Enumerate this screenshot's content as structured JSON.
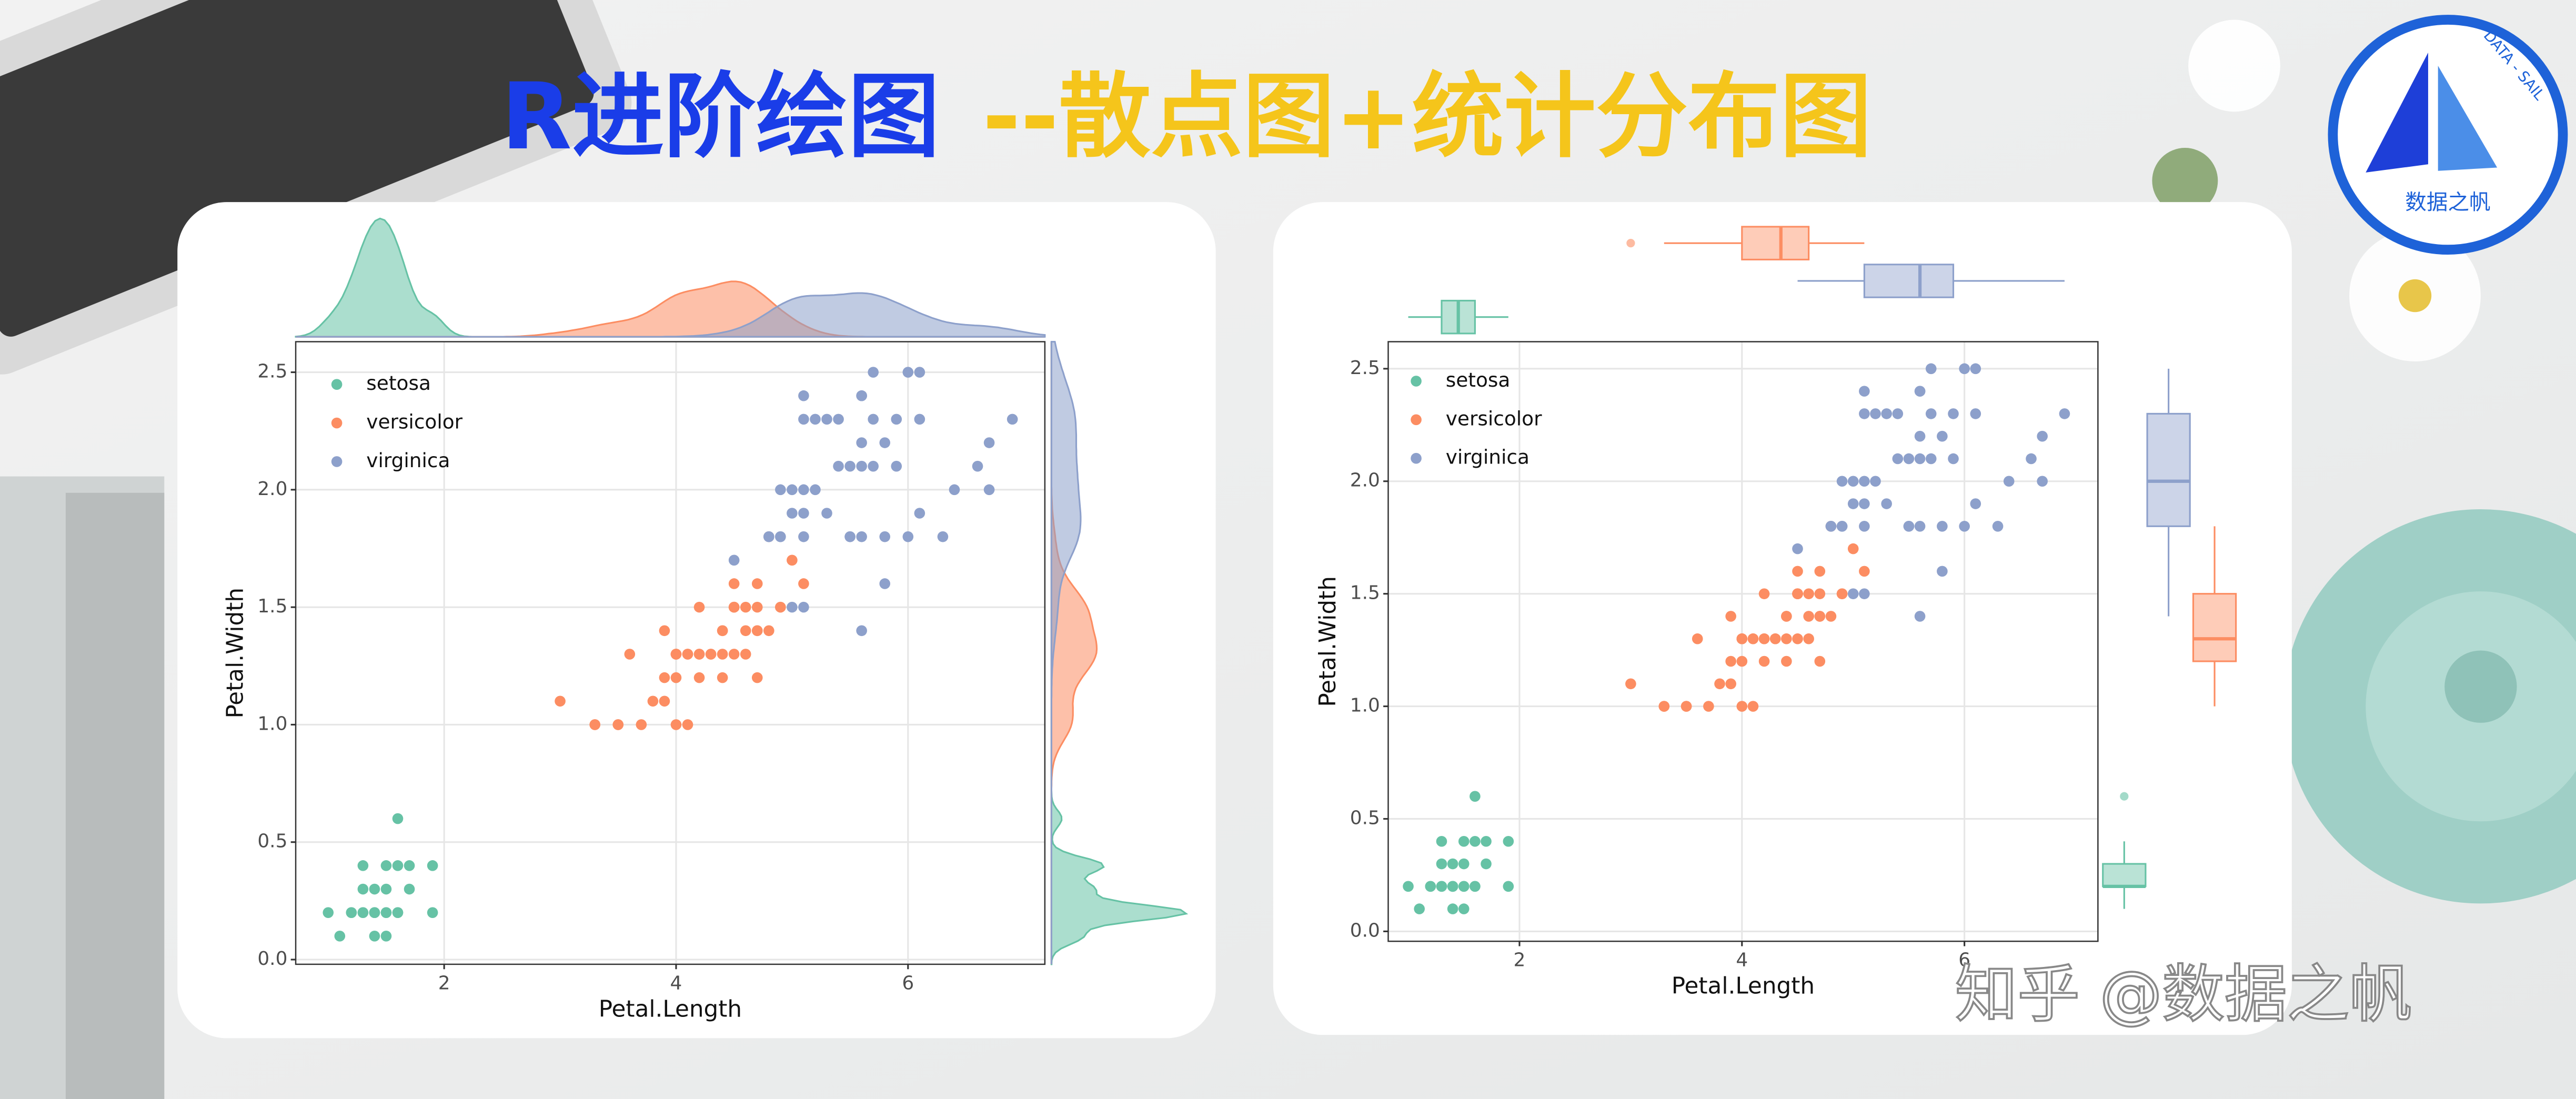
{
  "title": "R进阶绘图",
  "subtitle": "--散点图+统计分布图",
  "watermark": "知乎 @数据之帆",
  "logo": {
    "name": "数据之帆",
    "tagline": "DATA - SAIL"
  },
  "chart_data": [
    {
      "type": "scatter",
      "marginal": "density",
      "xlabel": "Petal.Length",
      "ylabel": "Petal.Width",
      "grid": true,
      "legend": "top-left",
      "xlim": [
        0.72,
        7.18
      ],
      "ylim": [
        -0.02,
        2.63
      ],
      "xticks": [
        2,
        4,
        6
      ],
      "yticks": [
        {
          "value": 0,
          "label": "0.0"
        },
        0.5,
        {
          "value": 1,
          "label": "1.0"
        },
        1.5,
        {
          "value": 2,
          "label": "2.0"
        },
        2.5
      ],
      "series": [
        {
          "name": "setosa",
          "color": "#66c2a5",
          "x": [
            1.4,
            1.3,
            1.5,
            1.7,
            1.4,
            1.5,
            1.4,
            1.1,
            1.2,
            1.5,
            1.3,
            1.7,
            1.5,
            1.0,
            1.9,
            1.6,
            1.6,
            1.4,
            1.6,
            1.9,
            1.3,
            1.2,
            1.5,
            1.6,
            1.4,
            1.3
          ],
          "y": [
            0.2,
            0.2,
            0.2,
            0.4,
            0.3,
            0.1,
            0.1,
            0.1,
            0.2,
            0.4,
            0.4,
            0.3,
            0.3,
            0.2,
            0.2,
            0.2,
            0.4,
            0.2,
            0.6,
            0.4,
            0.3,
            0.2,
            0.2,
            0.2,
            0.2,
            0.2
          ]
        },
        {
          "name": "versicolor",
          "color": "#fc8d62",
          "x": [
            4.7,
            4.5,
            4.9,
            4.0,
            4.6,
            4.5,
            4.7,
            3.3,
            4.6,
            3.9,
            3.5,
            4.2,
            4.0,
            4.7,
            3.6,
            4.4,
            4.5,
            4.1,
            4.5,
            3.9,
            4.8,
            4.0,
            4.9,
            4.7,
            4.3,
            4.4,
            4.8,
            5.0,
            4.5,
            3.5,
            3.8,
            3.7,
            3.9,
            5.1,
            4.5,
            4.5,
            4.7,
            4.4,
            4.1,
            4.0,
            4.4,
            4.6,
            4.0,
            3.3,
            4.2,
            4.2,
            4.2,
            4.3,
            3.0,
            4.1
          ],
          "y": [
            1.4,
            1.5,
            1.5,
            1.3,
            1.5,
            1.3,
            1.6,
            1.0,
            1.3,
            1.4,
            1.0,
            1.5,
            1.0,
            1.4,
            1.3,
            1.4,
            1.5,
            1.0,
            1.5,
            1.1,
            1.8,
            1.3,
            1.5,
            1.2,
            1.3,
            1.4,
            1.4,
            1.7,
            1.5,
            1.0,
            1.1,
            1.0,
            1.2,
            1.6,
            1.5,
            1.6,
            1.5,
            1.3,
            1.3,
            1.3,
            1.2,
            1.4,
            1.2,
            1.0,
            1.3,
            1.2,
            1.3,
            1.3,
            1.1,
            1.3
          ]
        },
        {
          "name": "virginica",
          "color": "#8da0cb",
          "x": [
            6.0,
            5.1,
            5.9,
            5.6,
            5.8,
            6.6,
            4.5,
            6.3,
            5.8,
            6.1,
            5.1,
            5.3,
            5.5,
            5.0,
            5.1,
            5.3,
            5.5,
            6.7,
            6.9,
            5.0,
            5.7,
            4.9,
            6.7,
            4.9,
            5.7,
            6.0,
            4.8,
            4.9,
            5.6,
            5.8,
            6.1,
            6.4,
            5.6,
            5.1,
            5.6,
            6.1,
            5.6,
            5.5,
            4.8,
            5.4,
            5.6,
            5.1,
            5.9,
            5.7,
            5.2,
            5.0,
            5.2,
            5.4,
            5.1
          ],
          "y": [
            2.5,
            1.9,
            2.1,
            1.8,
            2.2,
            2.1,
            1.7,
            1.8,
            1.8,
            2.5,
            2.0,
            1.9,
            2.1,
            2.0,
            2.4,
            2.3,
            1.8,
            2.2,
            2.3,
            1.5,
            2.3,
            2.0,
            2.0,
            1.8,
            2.1,
            1.8,
            1.8,
            1.8,
            2.1,
            1.6,
            1.9,
            2.0,
            2.2,
            1.5,
            1.4,
            2.3,
            2.4,
            1.8,
            1.8,
            2.1,
            2.4,
            2.3,
            2.3,
            2.5,
            2.3,
            1.9,
            2.0,
            2.3,
            1.8
          ]
        }
      ]
    },
    {
      "type": "scatter",
      "marginal": "boxplot",
      "xlabel": "Petal.Length",
      "ylabel": "Petal.Width",
      "grid": true,
      "legend": "top-left",
      "xlim": [
        0.82,
        7.2
      ],
      "ylim": [
        -0.044,
        2.62
      ],
      "xticks": [
        2,
        4,
        6
      ],
      "yticks": [
        {
          "value": 0,
          "label": "0.0"
        },
        0.5,
        {
          "value": 1,
          "label": "1.0"
        },
        1.5,
        {
          "value": 2,
          "label": "2.0"
        },
        2.5
      ],
      "series": [
        {
          "name": "setosa",
          "color": "#66c2a5",
          "x": [
            1.4,
            1.3,
            1.5,
            1.7,
            1.4,
            1.5,
            1.4,
            1.1,
            1.2,
            1.5,
            1.3,
            1.7,
            1.5,
            1.0,
            1.9,
            1.6,
            1.6,
            1.4,
            1.6,
            1.9,
            1.3,
            1.2,
            1.5,
            1.6,
            1.4,
            1.3
          ],
          "y": [
            0.2,
            0.2,
            0.2,
            0.4,
            0.3,
            0.1,
            0.1,
            0.1,
            0.2,
            0.4,
            0.4,
            0.3,
            0.3,
            0.2,
            0.2,
            0.2,
            0.4,
            0.2,
            0.6,
            0.4,
            0.3,
            0.2,
            0.2,
            0.2,
            0.2,
            0.2
          ]
        },
        {
          "name": "versicolor",
          "color": "#fc8d62",
          "x": [
            4.7,
            4.5,
            4.9,
            4.0,
            4.6,
            4.5,
            4.7,
            3.3,
            4.6,
            3.9,
            3.5,
            4.2,
            4.0,
            4.7,
            3.6,
            4.4,
            4.5,
            4.1,
            4.5,
            3.9,
            4.8,
            4.0,
            4.9,
            4.7,
            4.3,
            4.4,
            4.8,
            5.0,
            4.5,
            3.5,
            3.8,
            3.7,
            3.9,
            5.1,
            4.5,
            4.5,
            4.7,
            4.4,
            4.1,
            4.0,
            4.4,
            4.6,
            4.0,
            3.3,
            4.2,
            4.2,
            4.2,
            4.3,
            3.0,
            4.1
          ],
          "y": [
            1.4,
            1.5,
            1.5,
            1.3,
            1.5,
            1.3,
            1.6,
            1.0,
            1.3,
            1.4,
            1.0,
            1.5,
            1.0,
            1.4,
            1.3,
            1.4,
            1.5,
            1.0,
            1.5,
            1.1,
            1.8,
            1.3,
            1.5,
            1.2,
            1.3,
            1.4,
            1.4,
            1.7,
            1.5,
            1.0,
            1.1,
            1.0,
            1.2,
            1.6,
            1.5,
            1.6,
            1.5,
            1.3,
            1.3,
            1.3,
            1.2,
            1.4,
            1.2,
            1.0,
            1.3,
            1.2,
            1.3,
            1.3,
            1.1,
            1.3
          ]
        },
        {
          "name": "virginica",
          "color": "#8da0cb",
          "x": [
            6.0,
            5.1,
            5.9,
            5.6,
            5.8,
            6.6,
            4.5,
            6.3,
            5.8,
            6.1,
            5.1,
            5.3,
            5.5,
            5.0,
            5.1,
            5.3,
            5.5,
            6.7,
            6.9,
            5.0,
            5.7,
            4.9,
            6.7,
            4.9,
            5.7,
            6.0,
            4.8,
            4.9,
            5.6,
            5.8,
            6.1,
            6.4,
            5.6,
            5.1,
            5.6,
            6.1,
            5.6,
            5.5,
            4.8,
            5.4,
            5.6,
            5.1,
            5.9,
            5.7,
            5.2,
            5.0,
            5.2,
            5.4,
            5.1
          ],
          "y": [
            2.5,
            1.9,
            2.1,
            1.8,
            2.2,
            2.1,
            1.7,
            1.8,
            1.8,
            2.5,
            2.0,
            1.9,
            2.1,
            2.0,
            2.4,
            2.3,
            1.8,
            2.2,
            2.3,
            1.5,
            2.3,
            2.0,
            2.0,
            1.8,
            2.1,
            1.8,
            1.8,
            1.8,
            2.1,
            1.6,
            1.9,
            2.0,
            2.2,
            1.5,
            1.4,
            2.3,
            2.4,
            1.8,
            1.8,
            2.1,
            2.4,
            2.3,
            2.3,
            2.5,
            2.3,
            1.9,
            2.0,
            2.3,
            1.8
          ]
        }
      ]
    }
  ]
}
